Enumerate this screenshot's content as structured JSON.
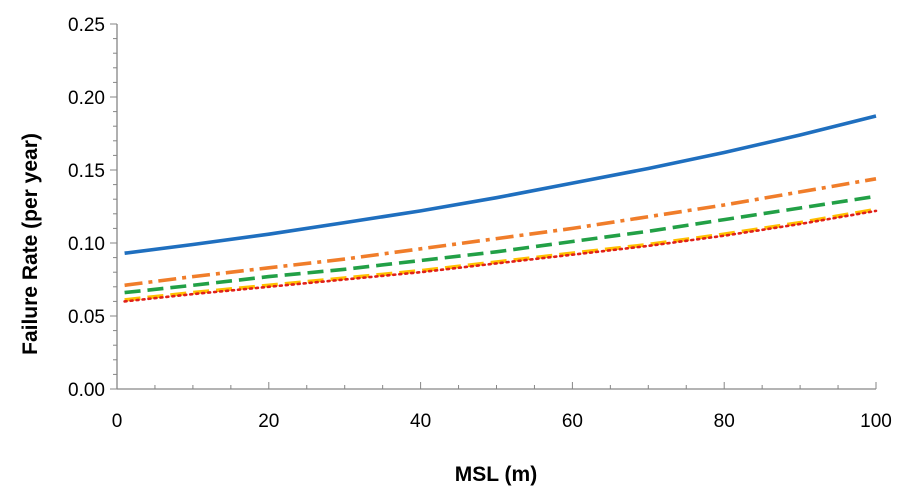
{
  "chart_data": {
    "type": "line",
    "title": "",
    "xlabel": "MSL (m)",
    "ylabel": "Failure Rate (per year)",
    "xlim": [
      0,
      100
    ],
    "ylim": [
      0,
      0.25
    ],
    "x_ticks": [
      "0",
      "20",
      "40",
      "60",
      "80",
      "100"
    ],
    "y_ticks": [
      "0.00",
      "0.05",
      "0.10",
      "0.15",
      "0.20",
      "0.25"
    ],
    "grid": false,
    "legend": "none",
    "series": [
      {
        "color": "#1f6fbf",
        "style": "solid",
        "x": [
          1,
          10,
          20,
          30,
          40,
          50,
          60,
          70,
          80,
          90,
          100
        ],
        "y": [
          0.093,
          0.099,
          0.106,
          0.114,
          0.122,
          0.131,
          0.141,
          0.151,
          0.162,
          0.174,
          0.187
        ]
      },
      {
        "color": "#f07d2a",
        "style": "dashdot",
        "x": [
          1,
          10,
          20,
          30,
          40,
          50,
          60,
          70,
          80,
          90,
          100
        ],
        "y": [
          0.071,
          0.077,
          0.083,
          0.089,
          0.096,
          0.103,
          0.11,
          0.118,
          0.126,
          0.135,
          0.144
        ]
      },
      {
        "color": "#22a046",
        "style": "dashed",
        "x": [
          1,
          10,
          20,
          30,
          40,
          50,
          60,
          70,
          80,
          90,
          100
        ],
        "y": [
          0.066,
          0.071,
          0.077,
          0.082,
          0.088,
          0.094,
          0.101,
          0.108,
          0.116,
          0.124,
          0.132
        ]
      },
      {
        "color": "#ffc000",
        "style": "dashed",
        "x": [
          1,
          10,
          20,
          30,
          40,
          50,
          60,
          70,
          80,
          90,
          100
        ],
        "y": [
          0.061,
          0.066,
          0.071,
          0.076,
          0.081,
          0.087,
          0.093,
          0.099,
          0.106,
          0.114,
          0.123
        ]
      },
      {
        "color": "#e0201a",
        "style": "dotted",
        "x": [
          1,
          10,
          20,
          30,
          40,
          50,
          60,
          70,
          80,
          90,
          100
        ],
        "y": [
          0.06,
          0.065,
          0.07,
          0.075,
          0.08,
          0.086,
          0.092,
          0.098,
          0.105,
          0.113,
          0.122
        ]
      }
    ]
  }
}
